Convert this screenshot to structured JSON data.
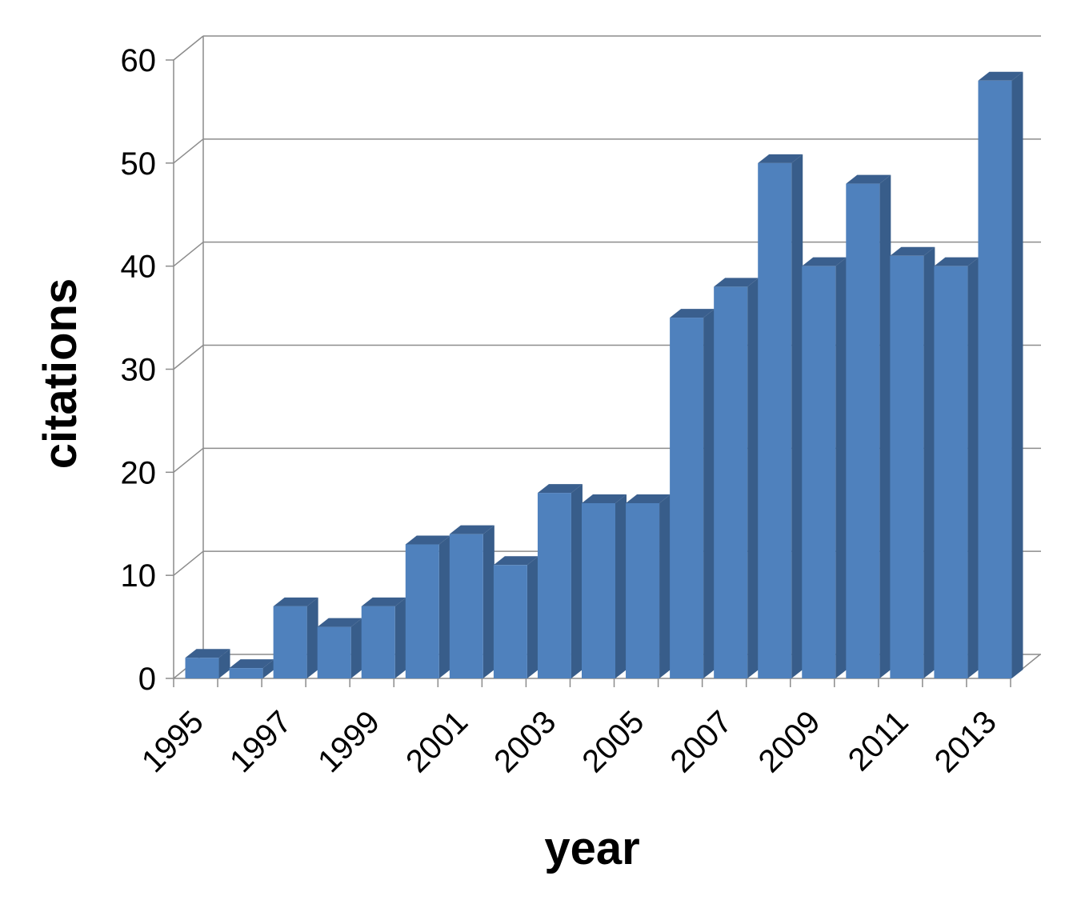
{
  "chart_data": {
    "type": "bar",
    "title": "",
    "xlabel": "year",
    "ylabel": "citations",
    "categories": [
      "1995",
      "1996",
      "1997",
      "1998",
      "1999",
      "2000",
      "2001",
      "2002",
      "2003",
      "2004",
      "2005",
      "2006",
      "2007",
      "2008",
      "2009",
      "2010",
      "2011",
      "2012",
      "2013"
    ],
    "x_tick_labels": [
      "1995",
      "1997",
      "1999",
      "2001",
      "2003",
      "2005",
      "2007",
      "2009",
      "2011",
      "2013"
    ],
    "values": [
      2,
      1,
      7,
      5,
      7,
      13,
      14,
      11,
      18,
      17,
      17,
      35,
      38,
      50,
      40,
      48,
      41,
      40,
      58
    ],
    "ylim": [
      0,
      60
    ],
    "y_ticks": [
      0,
      10,
      20,
      30,
      40,
      50,
      60
    ],
    "grid": true,
    "style": "3d-clustered-column",
    "colors": {
      "front": "#4F81BD",
      "side": "#385D8A",
      "top": "#3A5F8E"
    }
  }
}
